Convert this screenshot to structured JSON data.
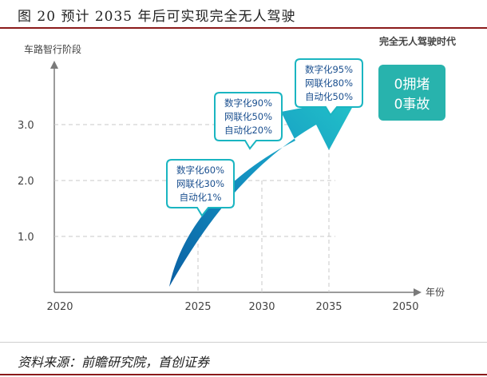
{
  "header": {
    "title": "图 20 预计 2035 年后可实现完全无人驾驶"
  },
  "footer": {
    "source": "资料来源：前瞻研究院，首创证券"
  },
  "colors": {
    "accent": "#1ab5c1",
    "accent_dark": "#0e6aa8",
    "rule": "#8b1a1a",
    "text": "#333333",
    "goal_box": "#28b3ad"
  },
  "chart_data": {
    "type": "line",
    "title": "",
    "ylabel": "车路智行阶段",
    "xlabel": "年份",
    "x_ticks": [
      "2020",
      "2025",
      "2030",
      "2035",
      "2050"
    ],
    "y_ticks": [
      "1.0",
      "2.0",
      "3.0"
    ],
    "ylim": [
      0,
      4
    ],
    "stage_marks": [
      {
        "x": "2025",
        "y": 1.0
      },
      {
        "x": "2030",
        "y": 2.0
      },
      {
        "x": "2035",
        "y": 3.0
      }
    ],
    "callouts": [
      {
        "year": "2025",
        "lines": [
          "数字化60%",
          "网联化30%",
          "自动化1%"
        ]
      },
      {
        "year": "2030",
        "lines": [
          "数字化90%",
          "网联化50%",
          "自动化20%"
        ]
      },
      {
        "year": "2035",
        "lines": [
          "数字化95%",
          "网联化80%",
          "自动化50%"
        ]
      }
    ],
    "goal": {
      "label": "完全无人驾驶时代",
      "lines": [
        "0拥堵",
        "0事故"
      ]
    }
  }
}
